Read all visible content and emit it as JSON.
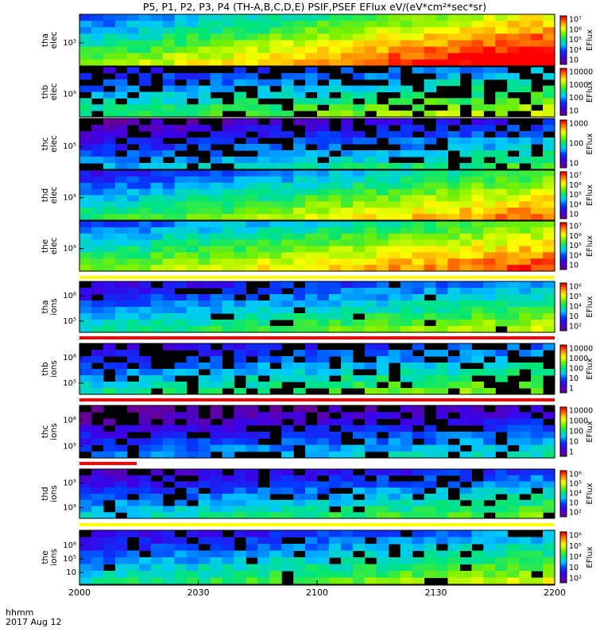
{
  "chart_data": {
    "type": "heatmap",
    "title": "P5, P1, P2, P3, P4 (TH-A,B,C,D,E) PSIF,PSEF EFlux eV/(eV*cm²*sec*sr)",
    "x_axis": {
      "label_line1": "hhmm",
      "label_line2": "2017 Aug 12",
      "ticks": [
        "2000",
        "2030",
        "2100",
        "2130",
        "2200"
      ],
      "range": [
        "2000",
        "2200"
      ]
    },
    "colorbar_label": "EFlux",
    "panels": [
      {
        "probe": "tha",
        "species": "elec",
        "yticks": [
          "10⁵"
        ],
        "cbar_ticks": [
          "10⁷",
          "10⁶",
          "10⁵",
          "10⁴",
          "10⁳"
        ],
        "cbar_range": [
          1000,
          10000000
        ],
        "level_start": 0.45,
        "level_end": 0.95,
        "gap_fraction": 0.0
      },
      {
        "probe": "thb",
        "species": "elec",
        "yticks": [
          "10⁵"
        ],
        "cbar_ticks": [
          "10000",
          "1000",
          "100",
          "10"
        ],
        "cbar_range": [
          1,
          10000
        ],
        "level_start": 0.35,
        "level_end": 0.55,
        "gap_fraction": 0.45
      },
      {
        "probe": "thc",
        "species": "elec",
        "yticks": [
          "10⁵"
        ],
        "cbar_ticks": [
          "1000",
          "100",
          "10"
        ],
        "cbar_range": [
          1,
          1000
        ],
        "level_start": 0.2,
        "level_end": 0.4,
        "gap_fraction": 0.4
      },
      {
        "probe": "thd",
        "species": "elec",
        "yticks": [
          "10⁵"
        ],
        "cbar_ticks": [
          "10⁷",
          "10⁶",
          "10⁵",
          "10⁴",
          "10⁳"
        ],
        "cbar_range": [
          1000,
          10000000
        ],
        "level_start": 0.35,
        "level_end": 0.75,
        "gap_fraction": 0.0
      },
      {
        "probe": "the",
        "species": "elec",
        "yticks": [
          "10⁵"
        ],
        "cbar_ticks": [
          "10⁷",
          "10⁶",
          "10⁵",
          "10⁴",
          "10⁳"
        ],
        "cbar_range": [
          1000,
          10000000
        ],
        "level_start": 0.45,
        "level_end": 0.8,
        "gap_fraction": 0.0
      },
      {
        "probe": "tha",
        "species": "ions",
        "yticks": [
          "10⁶",
          "10⁵"
        ],
        "cbar_ticks": [
          "10⁶",
          "10⁵",
          "10⁴",
          "10⁳",
          "10²"
        ],
        "cbar_range": [
          100,
          1000000
        ],
        "level_start": 0.3,
        "level_end": 0.55,
        "gap_fraction": 0.1
      },
      {
        "probe": "thb",
        "species": "ions",
        "yticks": [
          "10⁶",
          "10⁵"
        ],
        "cbar_ticks": [
          "10000",
          "1000",
          "100",
          "10",
          "1"
        ],
        "cbar_range": [
          1,
          10000
        ],
        "level_start": 0.3,
        "level_end": 0.5,
        "gap_fraction": 0.45
      },
      {
        "probe": "thc",
        "species": "ions",
        "yticks": [
          "10⁶",
          "10⁵"
        ],
        "cbar_ticks": [
          "10000",
          "1000",
          "100",
          "10",
          "1"
        ],
        "cbar_range": [
          1,
          10000
        ],
        "level_start": 0.15,
        "level_end": 0.3,
        "gap_fraction": 0.4
      },
      {
        "probe": "thd",
        "species": "ions",
        "yticks": [
          "10⁵",
          "10⁵"
        ],
        "cbar_ticks": [
          "10⁶",
          "10⁵",
          "10⁴",
          "10⁳",
          "10²"
        ],
        "cbar_range": [
          100,
          1000000
        ],
        "level_start": 0.25,
        "level_end": 0.45,
        "gap_fraction": 0.25
      },
      {
        "probe": "the",
        "species": "ions",
        "yticks": [
          "10⁶",
          "10⁵",
          "10⁳"
        ],
        "cbar_ticks": [
          "10⁶",
          "10⁵",
          "10⁴",
          "10⁳",
          "10²"
        ],
        "cbar_range": [
          100,
          1000000
        ],
        "level_start": 0.3,
        "level_end": 0.55,
        "gap_fraction": 0.15
      }
    ]
  },
  "colors": {
    "background": "#ffffff",
    "flag_bar_yellow": "#ffff00",
    "flag_bar_red": "#ff0000",
    "no_data": "#000000"
  }
}
